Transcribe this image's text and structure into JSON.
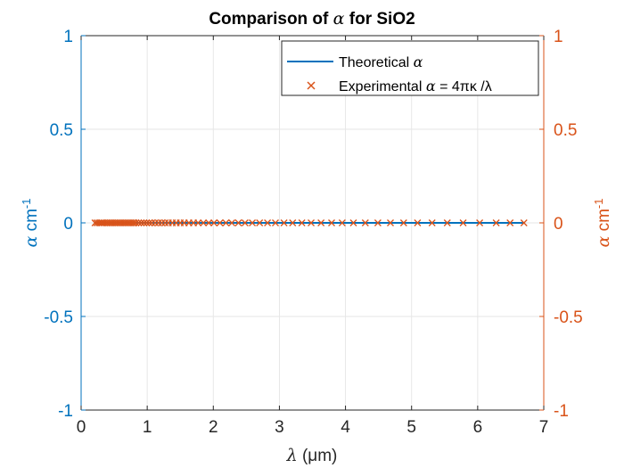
{
  "chart_data": {
    "type": "line",
    "title_prefix": "Comparison of",
    "title_symbol": "α",
    "title_suffix": "for SiO2",
    "xlabel_symbol": "λ",
    "xlabel_unit": "(μm)",
    "ylabel_left": {
      "symbol": "α",
      "unit": "cm",
      "exponent": "-1"
    },
    "ylabel_right": {
      "symbol": "α",
      "unit": "cm",
      "exponent": "-1"
    },
    "xlim": [
      0,
      7
    ],
    "ylim_left": [
      -1,
      1
    ],
    "ylim_right": [
      -1,
      1
    ],
    "x_ticks": [
      "0",
      "1",
      "2",
      "3",
      "4",
      "5",
      "6",
      "7"
    ],
    "y_ticks": [
      "-1",
      "-0.5",
      "0",
      "0.5",
      "1"
    ],
    "grid": true,
    "legend_position": "top-right",
    "legend": {
      "theoretical": {
        "text": "Theoretical",
        "symbol": "α"
      },
      "experimental": {
        "text_prefix": "Experimental",
        "symbol": "α",
        "formula": "= 4πκ /λ"
      }
    },
    "colors": {
      "left_axis": "#0072BD",
      "right_axis": "#D95319",
      "grid": "#e6e6e6"
    },
    "series": [
      {
        "name": "Theoretical α",
        "marker": "line",
        "x_range": [
          0.21,
          6.7
        ],
        "y": 0
      },
      {
        "name": "Experimental α = 4πκ /λ",
        "marker": "x",
        "x": [
          0.21,
          0.24,
          0.27,
          0.3,
          0.32,
          0.35,
          0.38,
          0.41,
          0.44,
          0.47,
          0.5,
          0.53,
          0.56,
          0.59,
          0.62,
          0.65,
          0.68,
          0.71,
          0.74,
          0.77,
          0.8,
          0.83,
          0.87,
          0.91,
          0.95,
          0.99,
          1.03,
          1.07,
          1.12,
          1.17,
          1.22,
          1.27,
          1.32,
          1.38,
          1.44,
          1.5,
          1.56,
          1.63,
          1.7,
          1.77,
          1.85,
          1.93,
          2.01,
          2.1,
          2.19,
          2.28,
          2.38,
          2.48,
          2.59,
          2.7,
          2.82,
          2.94,
          3.07,
          3.2,
          3.34,
          3.48,
          3.63,
          3.79,
          3.95,
          4.12,
          4.3,
          4.49,
          4.68,
          4.88,
          5.09,
          5.31,
          5.54,
          5.78,
          6.03,
          6.28,
          6.49,
          6.7
        ],
        "y": 0
      }
    ]
  }
}
